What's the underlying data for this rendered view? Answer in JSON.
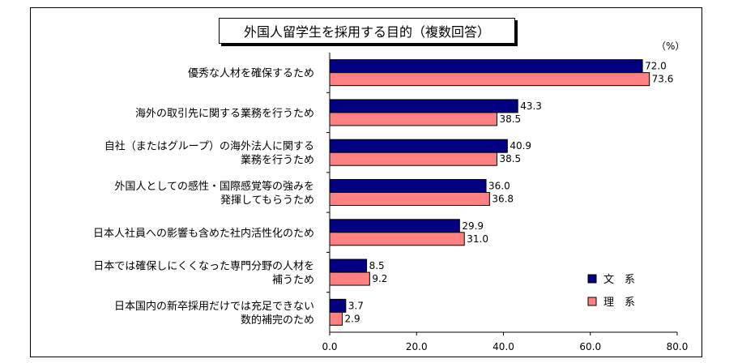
{
  "chart_data": {
    "type": "bar",
    "orientation": "horizontal",
    "title": "外国人留学生を採用する目的（複数回答）",
    "unit": "（%）",
    "categories": [
      [
        "優秀な人材を確保するため"
      ],
      [
        "海外の取引先に関する業務を行うため"
      ],
      [
        "自社（またはグループ）の海外法人に関する",
        "業務を行うため"
      ],
      [
        "外国人としての感性・国際感覚等の強みを",
        "発揮してもらうため"
      ],
      [
        "日本人社員への影響も含めた社内活性化のため"
      ],
      [
        "日本では確保しにくくなった専門分野の人材を",
        "補うため"
      ],
      [
        "日本国内の新卒採用だけでは充足できない",
        "数的補完のため"
      ]
    ],
    "series": [
      {
        "name": "文　系",
        "color": "#000080",
        "values": [
          72.0,
          43.3,
          40.9,
          36.0,
          29.9,
          8.5,
          3.7
        ]
      },
      {
        "name": "理　系",
        "color": "#ff8080",
        "values": [
          73.6,
          38.5,
          38.5,
          36.8,
          31.0,
          9.2,
          2.9
        ]
      }
    ],
    "xlim": [
      0,
      80
    ],
    "xticks": [
      "0.0",
      "20.0",
      "40.0",
      "60.0",
      "80.0"
    ],
    "legend": "bottom-right",
    "grid": false
  }
}
